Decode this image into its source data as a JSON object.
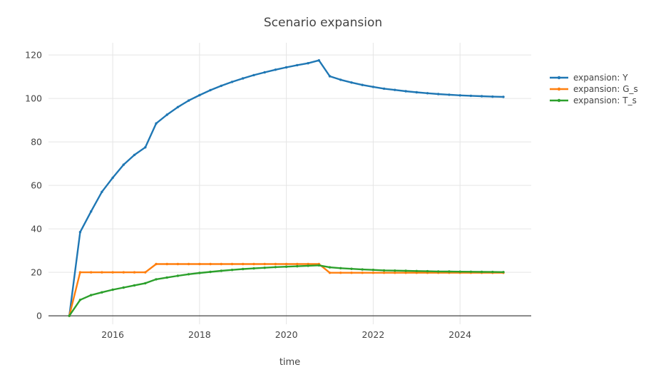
{
  "chart_data": {
    "type": "line",
    "title": "Scenario expansion",
    "xlabel": "time",
    "ylabel": "",
    "x_ticks": [
      2016,
      2018,
      2020,
      2022,
      2024
    ],
    "y_ticks": [
      0,
      20,
      40,
      60,
      80,
      100,
      120
    ],
    "xlim": [
      2014.52,
      2025.64
    ],
    "ylim": [
      -3.9,
      125.6
    ],
    "grid": true,
    "legend_position": "right",
    "grid_color": "#e5e5e5",
    "zeroline_color": "#444444",
    "text_color": "#444444",
    "x": [
      2015,
      2015.25,
      2015.5,
      2015.75,
      2016,
      2016.25,
      2016.5,
      2016.75,
      2017,
      2017.25,
      2017.5,
      2017.75,
      2018,
      2018.25,
      2018.5,
      2018.75,
      2019,
      2019.25,
      2019.5,
      2019.75,
      2020,
      2020.25,
      2020.5,
      2020.75,
      2021,
      2021.25,
      2021.5,
      2021.75,
      2022,
      2022.25,
      2022.5,
      2022.75,
      2023,
      2023.25,
      2023.5,
      2023.75,
      2024,
      2024.25,
      2024.5,
      2024.75,
      2025
    ],
    "series": [
      {
        "name": "expansion: Y",
        "color": "#1f77b4",
        "values": [
          0,
          38.5,
          48,
          57,
          63.5,
          69.5,
          74,
          77.5,
          88.5,
          92.5,
          96,
          99,
          101.5,
          103.8,
          105.8,
          107.6,
          109.2,
          110.7,
          112,
          113.2,
          114.3,
          115.3,
          116.2,
          117.5,
          110.2,
          108.6,
          107.3,
          106.2,
          105.3,
          104.5,
          103.9,
          103.3,
          102.8,
          102.4,
          102,
          101.7,
          101.4,
          101.2,
          101,
          100.8,
          100.7
        ]
      },
      {
        "name": "expansion: G_s",
        "color": "#ff7f0e",
        "values": [
          0,
          20,
          20,
          20,
          20,
          20,
          20,
          20,
          23.8,
          23.8,
          23.8,
          23.8,
          23.8,
          23.8,
          23.8,
          23.8,
          23.8,
          23.8,
          23.8,
          23.8,
          23.8,
          23.8,
          23.8,
          23.8,
          19.8,
          19.8,
          19.8,
          19.8,
          19.8,
          19.8,
          19.8,
          19.8,
          19.8,
          19.8,
          19.8,
          19.8,
          19.8,
          19.8,
          19.8,
          19.8,
          19.8
        ]
      },
      {
        "name": "expansion: T_s",
        "color": "#2ca02c",
        "values": [
          0,
          7.3,
          9.5,
          10.8,
          12,
          13,
          14,
          15,
          16.8,
          17.6,
          18.4,
          19.1,
          19.7,
          20.2,
          20.7,
          21.1,
          21.5,
          21.8,
          22.1,
          22.4,
          22.6,
          22.8,
          23,
          23.2,
          22.3,
          21.9,
          21.6,
          21.3,
          21.1,
          20.9,
          20.8,
          20.7,
          20.6,
          20.5,
          20.4,
          20.35,
          20.3,
          20.25,
          20.2,
          20.15,
          20.1
        ]
      }
    ]
  }
}
